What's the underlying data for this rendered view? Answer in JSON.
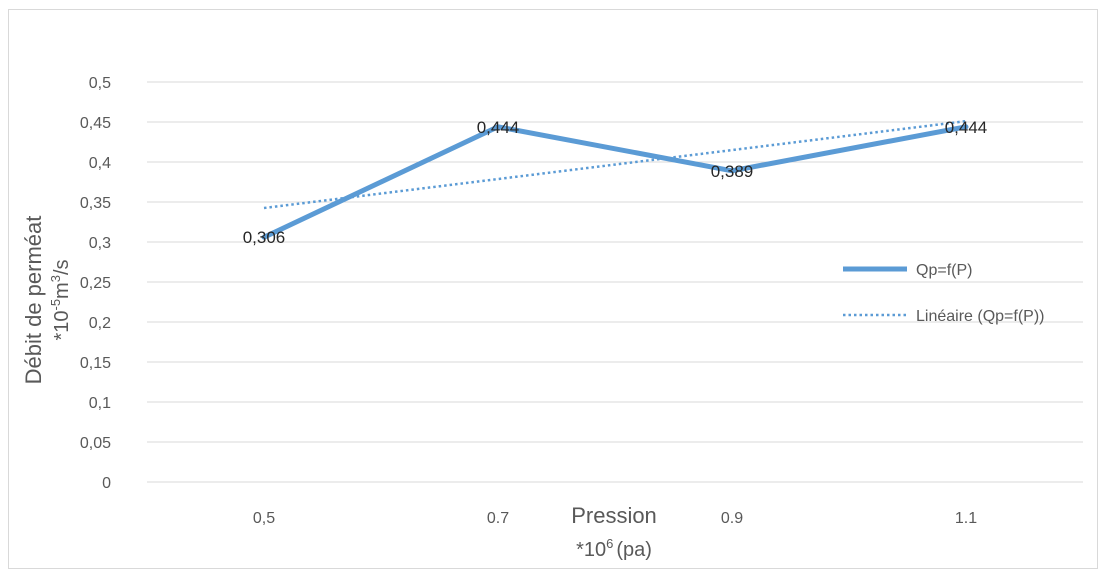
{
  "chart_data": {
    "type": "line",
    "title": "",
    "categories": [
      "0,5",
      "0.7",
      "0.9",
      "1.1"
    ],
    "x": [
      0.5,
      0.7,
      0.9,
      1.1
    ],
    "series": [
      {
        "name": "Qp=f(P)",
        "values": [
          0.306,
          0.444,
          0.389,
          0.444
        ],
        "labels": [
          "0,306",
          "0,444",
          "0,389",
          "0,444"
        ],
        "color": "#5b9bd5",
        "style": "solid"
      },
      {
        "name": "Linéaire (Qp=f(P))",
        "values": [
          0.3425,
          0.3787,
          0.4149,
          0.4511
        ],
        "color": "#5b9bd5",
        "style": "dotted"
      }
    ],
    "xlabel": {
      "main": "Pression",
      "prefix": "*10",
      "sup": "6",
      "suffix": "(pa)"
    },
    "ylabel": {
      "main": "Débit de perméat",
      "prefix": "*10",
      "sup1": "-5",
      "mid": "m",
      "sup2": "3",
      "suffix": "/s"
    },
    "ylim": [
      0,
      0.5
    ],
    "yticks": [
      0,
      0.05,
      0.1,
      0.15,
      0.2,
      0.25,
      0.3,
      0.35,
      0.4,
      0.45,
      0.5
    ],
    "ytick_labels": [
      "0",
      "0,05",
      "0,1",
      "0,15",
      "0,2",
      "0,25",
      "0,3",
      "0,35",
      "0,4",
      "0,45",
      "0,5"
    ],
    "grid": true,
    "legend_position": "right"
  }
}
